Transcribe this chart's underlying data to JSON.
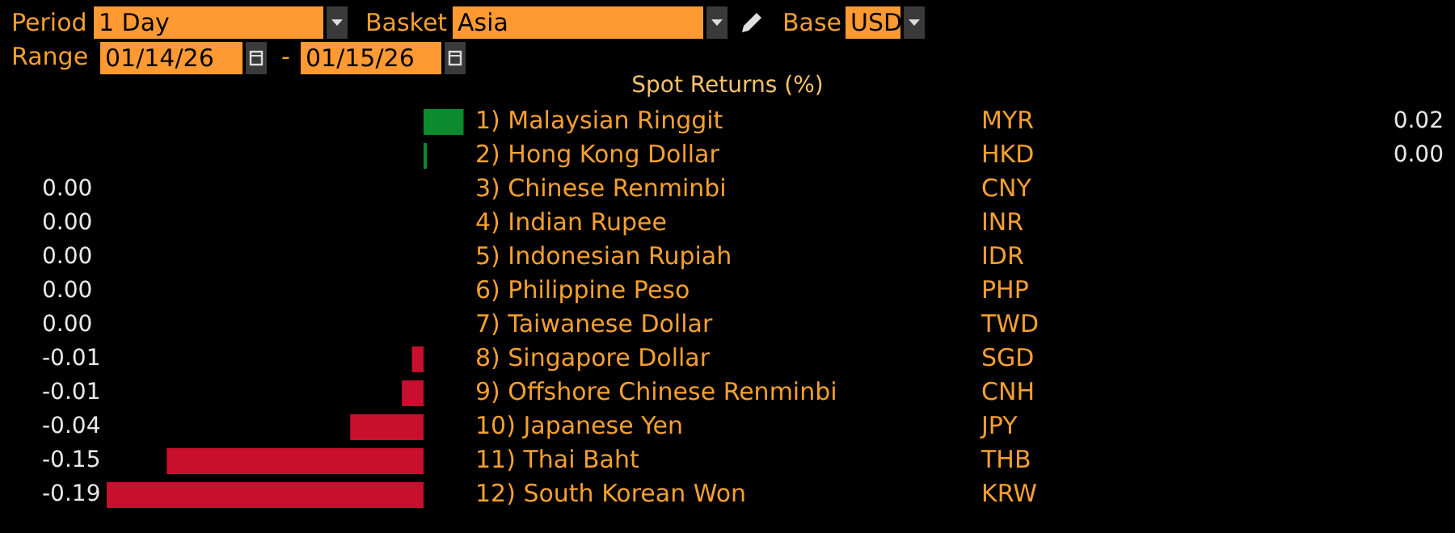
{
  "chart_data": {
    "type": "bar",
    "orientation": "horizontal",
    "title": "Spot Returns (%)",
    "categories": [
      "1) Malaysian Ringgit",
      "2) Hong Kong Dollar",
      "3) Chinese Renminbi",
      "4) Indian Rupee",
      "5) Indonesian Rupiah",
      "6) Philippine Peso",
      "7) Taiwanese Dollar",
      "8) Singapore Dollar",
      "9) Offshore Chinese Renminbi",
      "10) Japanese Yen",
      "11) Thai Baht",
      "12) South Korean Won"
    ],
    "series": [
      {
        "color": "#0b8a2e",
        "values": [
          0.024,
          0.002,
          null,
          null,
          null,
          null,
          null,
          null,
          null,
          null,
          null,
          null
        ],
        "value_labels": [
          "0.02",
          "0.00",
          null,
          null,
          null,
          null,
          null,
          null,
          null,
          null,
          null,
          null
        ]
      },
      {
        "color": "#c8102e",
        "values": [
          null,
          null,
          0,
          0,
          0,
          0,
          0,
          -0.007,
          -0.013,
          -0.044,
          -0.154,
          -0.19
        ],
        "value_labels": [
          null,
          null,
          "0.00",
          "0.00",
          "0.00",
          "0.00",
          "0.00",
          "-0.01",
          "-0.01",
          "-0.04",
          "-0.15",
          "-0.19"
        ]
      }
    ],
    "annotations": [
      "Period",
      "1 Day",
      "Basket",
      "Asia",
      "Base",
      "USD",
      "Range",
      "01/14/26",
      "-",
      "01/15/26",
      "MYR",
      "HKD",
      "CNY",
      "INR",
      "IDR",
      "PHP",
      "TWD",
      "SGD",
      "CNH",
      "JPY",
      "THB",
      "KRW"
    ]
  }
}
